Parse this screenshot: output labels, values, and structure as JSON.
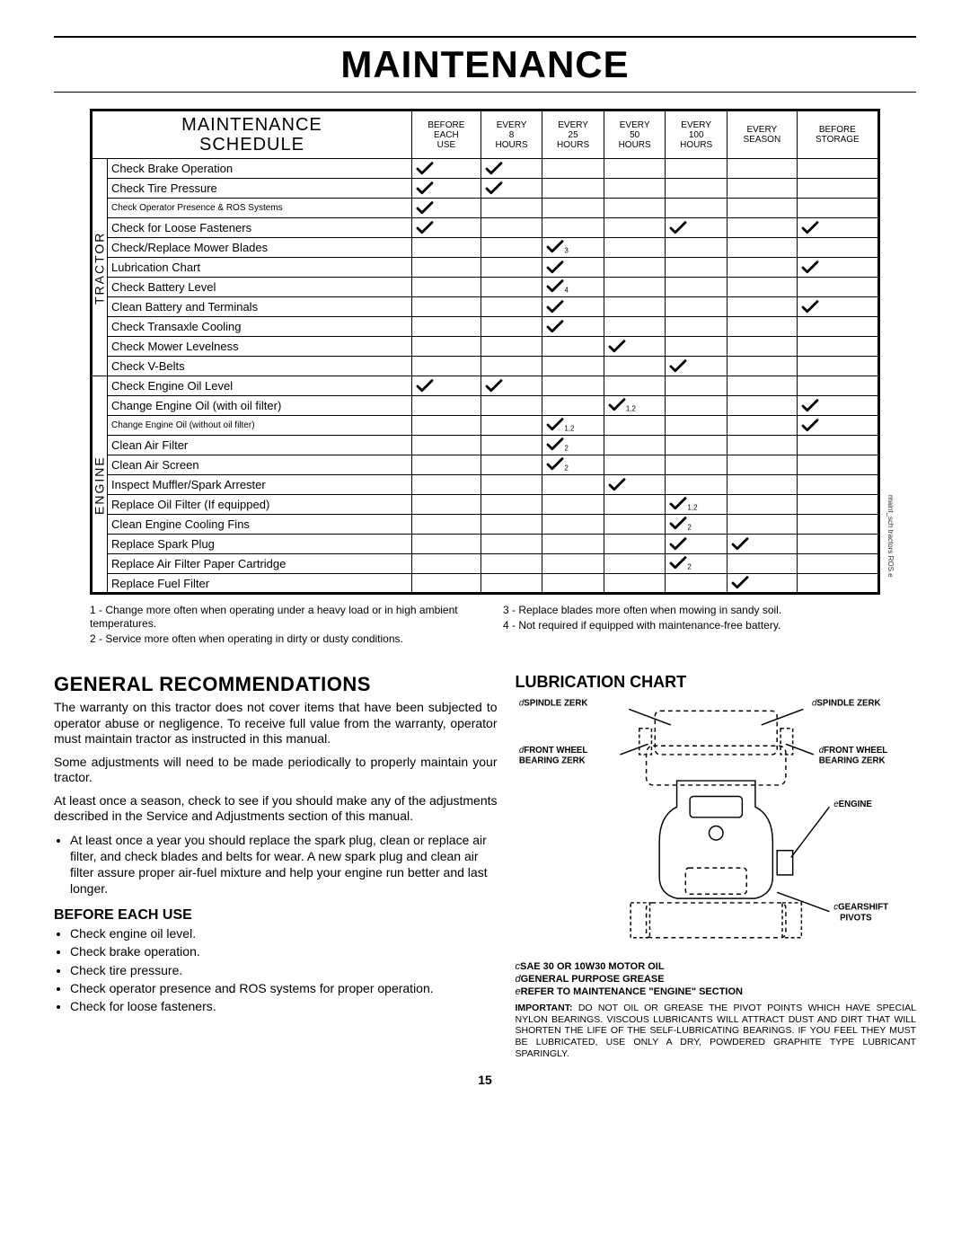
{
  "page_title": "MAINTENANCE",
  "page_number": "15",
  "side_note": "maint_sch tractors ROS.e",
  "schedule": {
    "title_top": "MAINTENANCE",
    "title_bottom": "SCHEDULE",
    "columns": [
      "BEFORE\nEACH\nUSE",
      "EVERY\n8\nHOURS",
      "EVERY\n25\nHOURS",
      "EVERY\n50\nHOURS",
      "EVERY\n100\nHOURS",
      "EVERY\nSEASON",
      "BEFORE\nSTORAGE"
    ],
    "groups": [
      {
        "label": "TRACTOR",
        "rows": [
          {
            "name": "Check Brake Operation",
            "checks": [
              1,
              1,
              0,
              0,
              0,
              0,
              0
            ],
            "subs": [
              "",
              "",
              "",
              "",
              "",
              "",
              ""
            ]
          },
          {
            "name": "Check Tire Pressure",
            "checks": [
              1,
              1,
              0,
              0,
              0,
              0,
              0
            ],
            "subs": [
              "",
              "",
              "",
              "",
              "",
              "",
              ""
            ]
          },
          {
            "name": "Check Operator Presence & ROS Systems",
            "checks": [
              1,
              0,
              0,
              0,
              0,
              0,
              0
            ],
            "subs": [
              "",
              "",
              "",
              "",
              "",
              "",
              ""
            ]
          },
          {
            "name": "Check for Loose Fasteners",
            "checks": [
              1,
              0,
              0,
              0,
              1,
              0,
              1
            ],
            "subs": [
              "",
              "",
              "",
              "",
              "",
              "",
              ""
            ]
          },
          {
            "name": "Check/Replace Mower Blades",
            "checks": [
              0,
              0,
              1,
              0,
              0,
              0,
              0
            ],
            "subs": [
              "",
              "",
              "3",
              "",
              "",
              "",
              ""
            ]
          },
          {
            "name": "Lubrication Chart",
            "checks": [
              0,
              0,
              1,
              0,
              0,
              0,
              1
            ],
            "subs": [
              "",
              "",
              "",
              "",
              "",
              "",
              ""
            ]
          },
          {
            "name": "Check Battery Level",
            "checks": [
              0,
              0,
              1,
              0,
              0,
              0,
              0
            ],
            "subs": [
              "",
              "",
              "4",
              "",
              "",
              "",
              ""
            ]
          },
          {
            "name": "Clean Battery and Terminals",
            "checks": [
              0,
              0,
              1,
              0,
              0,
              0,
              1
            ],
            "subs": [
              "",
              "",
              "",
              "",
              "",
              "",
              ""
            ]
          },
          {
            "name": "Check Transaxle Cooling",
            "checks": [
              0,
              0,
              1,
              0,
              0,
              0,
              0
            ],
            "subs": [
              "",
              "",
              "",
              "",
              "",
              "",
              ""
            ]
          },
          {
            "name": "Check Mower Levelness",
            "checks": [
              0,
              0,
              0,
              1,
              0,
              0,
              0
            ],
            "subs": [
              "",
              "",
              "",
              "",
              "",
              "",
              ""
            ]
          },
          {
            "name": "Check V-Belts",
            "checks": [
              0,
              0,
              0,
              0,
              1,
              0,
              0
            ],
            "subs": [
              "",
              "",
              "",
              "",
              "",
              "",
              ""
            ]
          }
        ]
      },
      {
        "label": "ENGINE",
        "rows": [
          {
            "name": "Check Engine Oil Level",
            "checks": [
              1,
              1,
              0,
              0,
              0,
              0,
              0
            ],
            "subs": [
              "",
              "",
              "",
              "",
              "",
              "",
              ""
            ]
          },
          {
            "name": "Change Engine Oil (with oil filter)",
            "checks": [
              0,
              0,
              0,
              1,
              0,
              0,
              1
            ],
            "subs": [
              "",
              "",
              "",
              "1,2",
              "",
              "",
              ""
            ]
          },
          {
            "name": "Change Engine Oil (without oil filter)",
            "checks": [
              0,
              0,
              1,
              0,
              0,
              0,
              1
            ],
            "subs": [
              "",
              "",
              "1,2",
              "",
              "",
              "",
              ""
            ]
          },
          {
            "name": "Clean Air Filter",
            "checks": [
              0,
              0,
              1,
              0,
              0,
              0,
              0
            ],
            "subs": [
              "",
              "",
              "2",
              "",
              "",
              "",
              ""
            ]
          },
          {
            "name": "Clean Air Screen",
            "checks": [
              0,
              0,
              1,
              0,
              0,
              0,
              0
            ],
            "subs": [
              "",
              "",
              "2",
              "",
              "",
              "",
              ""
            ]
          },
          {
            "name": "Inspect Muffler/Spark Arrester",
            "checks": [
              0,
              0,
              0,
              1,
              0,
              0,
              0
            ],
            "subs": [
              "",
              "",
              "",
              "",
              "",
              "",
              ""
            ]
          },
          {
            "name": "Replace Oil Filter (If equipped)",
            "checks": [
              0,
              0,
              0,
              0,
              1,
              0,
              0
            ],
            "subs": [
              "",
              "",
              "",
              "",
              "1,2",
              "",
              ""
            ]
          },
          {
            "name": "Clean Engine Cooling Fins",
            "checks": [
              0,
              0,
              0,
              0,
              1,
              0,
              0
            ],
            "subs": [
              "",
              "",
              "",
              "",
              "2",
              "",
              ""
            ]
          },
          {
            "name": "Replace Spark Plug",
            "checks": [
              0,
              0,
              0,
              0,
              1,
              1,
              0
            ],
            "subs": [
              "",
              "",
              "",
              "",
              "",
              "",
              ""
            ]
          },
          {
            "name": "Replace Air Filter Paper Cartridge",
            "checks": [
              0,
              0,
              0,
              0,
              1,
              0,
              0
            ],
            "subs": [
              "",
              "",
              "",
              "",
              "2",
              "",
              ""
            ]
          },
          {
            "name": "Replace Fuel Filter",
            "checks": [
              0,
              0,
              0,
              0,
              0,
              1,
              0
            ],
            "subs": [
              "",
              "",
              "",
              "",
              "",
              "",
              ""
            ]
          }
        ]
      }
    ]
  },
  "footnotes": {
    "left": [
      "1 - Change more often when operating under a heavy load or in high ambient temperatures.",
      "2 - Service more often when operating in dirty or dusty conditions."
    ],
    "right": [
      "3 - Replace blades more often when mowing in sandy soil.",
      "4 - Not required if equipped with maintenance-free battery."
    ]
  },
  "general": {
    "heading": "GENERAL RECOMMENDATIONS",
    "p1": "The warranty on this tractor does not cover items that have been subjected to operator abuse or negligence. To receive full value from the warranty, operator must maintain tractor as instructed in this manual.",
    "p2": "Some adjustments will need to be made periodically to properly maintain your tractor.",
    "p3": "At least once a season, check to see if you should make any of the adjustments described in the Service and Adjustments section of this manual.",
    "bullet1": "At least once a year you should replace the spark plug, clean or replace air filter, and check blades and belts for wear. A new spark plug and clean air filter assure proper air-fuel mixture and help your engine run better and last longer."
  },
  "before_use": {
    "heading": "BEFORE EACH USE",
    "items": [
      "Check engine oil level.",
      "Check brake operation.",
      "Check tire pressure.",
      "Check operator presence and ROS systems for proper operation.",
      "Check for loose fasteners."
    ]
  },
  "lubrication": {
    "heading": "LUBRICATION CHART",
    "labels": {
      "spindle_l": "SPINDLE ZERK",
      "spindle_r": "SPINDLE ZERK",
      "front_l": "FRONT WHEEL BEARING ZERK",
      "front_r": "FRONT WHEEL BEARING ZERK",
      "engine": "ENGINE",
      "gearshift": "GEARSHIFT PIVOTS"
    },
    "legend": [
      {
        "prefix": "c",
        "text": "SAE 30 OR 10W30 MOTOR OIL"
      },
      {
        "prefix": "d",
        "text": "GENERAL PURPOSE GREASE"
      },
      {
        "prefix": "e",
        "text": "REFER TO MAINTENANCE \"ENGINE\" SECTION"
      }
    ],
    "important": "IMPORTANT: DO NOT OIL OR GREASE THE PIVOT POINTS WHICH HAVE SPECIAL NYLON BEARINGS. VISCOUS LUBRICANTS WILL ATTRACT DUST AND DIRT THAT WILL SHORTEN THE LIFE OF THE SELF-LUBRICATING BEARINGS. IF YOU FEEL THEY MUST BE LUBRICATED, USE ONLY A DRY, POWDERED GRAPHITE TYPE LUBRICANT SPARINGLY."
  }
}
